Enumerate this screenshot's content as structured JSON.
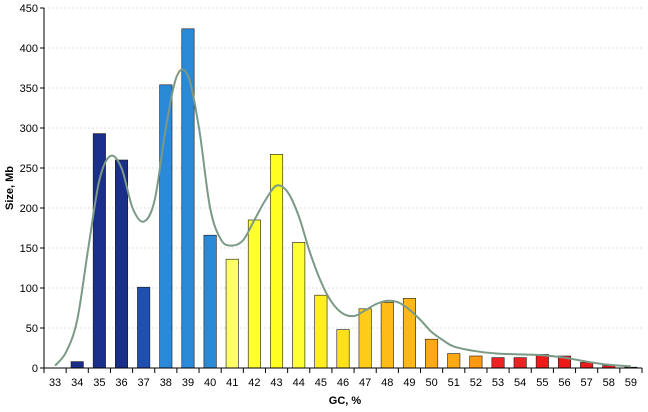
{
  "chart_data": {
    "type": "bar",
    "title": "",
    "xlabel": "GC, %",
    "ylabel": "Size, Mb",
    "ylim": [
      0,
      450
    ],
    "yticks": [
      0,
      50,
      100,
      150,
      200,
      250,
      300,
      350,
      400,
      450
    ],
    "grid": "horizontal dotted",
    "categories": [
      "33",
      "34",
      "35",
      "36",
      "37",
      "38",
      "39",
      "40",
      "41",
      "42",
      "43",
      "44",
      "45",
      "46",
      "47",
      "48",
      "49",
      "50",
      "51",
      "52",
      "53",
      "54",
      "55",
      "56",
      "57",
      "58",
      "59"
    ],
    "values": [
      0,
      8,
      293,
      260,
      101,
      354,
      424,
      166,
      136,
      185,
      267,
      157,
      91,
      48,
      74,
      82,
      87,
      36,
      18,
      15,
      13,
      13,
      17,
      15,
      7,
      3,
      1
    ],
    "bar_colors": [
      "#1a2f8a",
      "#1a2f8a",
      "#1a2f8a",
      "#1a2f8a",
      "#1f4fb0",
      "#2a8ad8",
      "#2a8ad8",
      "#2a8ad8",
      "#ffff66",
      "#ffff33",
      "#ffff22",
      "#ffff33",
      "#ffee22",
      "#ffe020",
      "#ffcc1a",
      "#ffbb18",
      "#ffb816",
      "#ffaa14",
      "#ffaa14",
      "#ff9912",
      "#ee2222",
      "#ee2222",
      "#ee1a1a",
      "#ee1a1a",
      "#ee1a1a",
      "#ee1a1a",
      "#ee1a1a"
    ],
    "fitted_curve": {
      "color": "#7a9a86",
      "x": [
        33,
        33.5,
        34,
        34.5,
        35,
        35.5,
        36,
        36.5,
        37,
        37.5,
        38,
        38.5,
        39,
        39.5,
        40,
        40.5,
        41,
        41.5,
        42,
        42.5,
        43,
        43.5,
        44,
        44.5,
        45,
        45.5,
        46,
        46.5,
        47,
        47.5,
        48,
        48.5,
        49,
        49.5,
        50,
        50.5,
        51,
        52,
        53,
        54,
        55,
        56,
        57,
        58,
        59
      ],
      "y": [
        3,
        20,
        60,
        150,
        235,
        265,
        250,
        200,
        183,
        210,
        300,
        365,
        365,
        300,
        200,
        160,
        153,
        160,
        185,
        210,
        228,
        220,
        190,
        145,
        108,
        82,
        68,
        65,
        72,
        80,
        84,
        82,
        73,
        60,
        45,
        35,
        27,
        21,
        18,
        17,
        16,
        13,
        8,
        4,
        2
      ]
    }
  }
}
